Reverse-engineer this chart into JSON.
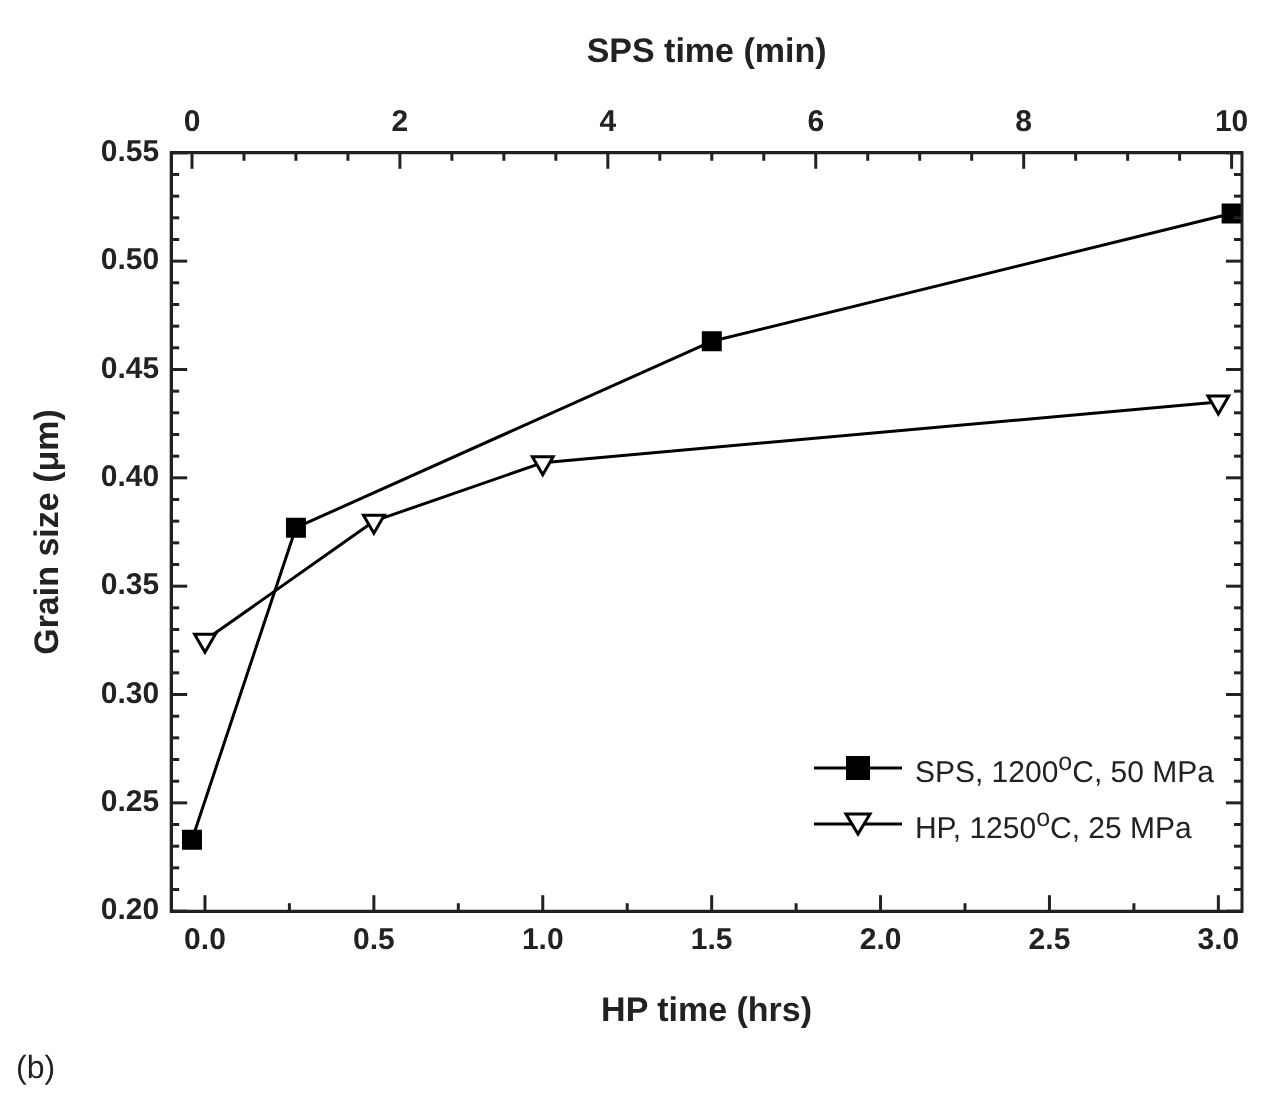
{
  "chart_data": {
    "type": "line",
    "xlabel": "HP time (hrs)",
    "x2label": "SPS time (min)",
    "ylabel": "Grain size (μm)",
    "xlim": [
      -0.1,
      3.07
    ],
    "xticks": [
      {
        "value": 0,
        "label": "0.0"
      },
      {
        "value": 0.25,
        "label": null
      },
      {
        "value": 0.5,
        "label": "0.5"
      },
      {
        "value": 0.75,
        "label": null
      },
      {
        "value": 1,
        "label": "1.0"
      },
      {
        "value": 1.25,
        "label": null
      },
      {
        "value": 1.5,
        "label": "1.5"
      },
      {
        "value": 1.75,
        "label": null
      },
      {
        "value": 2,
        "label": "2.0"
      },
      {
        "value": 2.25,
        "label": null
      },
      {
        "value": 2.5,
        "label": "2.5"
      },
      {
        "value": 2.75,
        "label": null
      },
      {
        "value": 3,
        "label": "3.0"
      }
    ],
    "x2lim": [
      -0.2,
      10.1
    ],
    "x2ticks": [
      0,
      {
        "value": 0.5,
        "label": null
      },
      {
        "value": 1,
        "label": null
      },
      {
        "value": 1.5,
        "label": null
      },
      2,
      {
        "value": 2.5,
        "label": null
      },
      {
        "value": 3,
        "label": null
      },
      {
        "value": 3.5,
        "label": null
      },
      4,
      {
        "value": 4.5,
        "label": null
      },
      {
        "value": 5,
        "label": null
      },
      {
        "value": 5.5,
        "label": null
      },
      6,
      {
        "value": 6.5,
        "label": null
      },
      {
        "value": 7,
        "label": null
      },
      {
        "value": 7.5,
        "label": null
      },
      8,
      {
        "value": 8.5,
        "label": null
      },
      {
        "value": 9,
        "label": null
      },
      {
        "value": 9.5,
        "label": null
      },
      10
    ],
    "ylim": [
      0.2,
      0.55
    ],
    "yticks": [
      {
        "value": 0.2,
        "label": "0.20"
      },
      {
        "value": 0.21,
        "label": null
      },
      {
        "value": 0.22,
        "label": null
      },
      {
        "value": 0.23,
        "label": null
      },
      {
        "value": 0.24,
        "label": null
      },
      {
        "value": 0.25,
        "label": "0.25"
      },
      {
        "value": 0.26,
        "label": null
      },
      {
        "value": 0.27,
        "label": null
      },
      {
        "value": 0.28,
        "label": null
      },
      {
        "value": 0.29,
        "label": null
      },
      {
        "value": 0.3,
        "label": "0.30"
      },
      {
        "value": 0.31,
        "label": null
      },
      {
        "value": 0.32,
        "label": null
      },
      {
        "value": 0.33,
        "label": null
      },
      {
        "value": 0.34,
        "label": null
      },
      {
        "value": 0.35,
        "label": "0.35"
      },
      {
        "value": 0.36,
        "label": null
      },
      {
        "value": 0.37,
        "label": null
      },
      {
        "value": 0.38,
        "label": null
      },
      {
        "value": 0.39,
        "label": null
      },
      {
        "value": 0.4,
        "label": "0.40"
      },
      {
        "value": 0.41,
        "label": null
      },
      {
        "value": 0.42,
        "label": null
      },
      {
        "value": 0.43,
        "label": null
      },
      {
        "value": 0.44,
        "label": null
      },
      {
        "value": 0.45,
        "label": "0.45"
      },
      {
        "value": 0.46,
        "label": null
      },
      {
        "value": 0.47,
        "label": null
      },
      {
        "value": 0.48,
        "label": null
      },
      {
        "value": 0.49,
        "label": null
      },
      {
        "value": 0.5,
        "label": "0.50"
      },
      {
        "value": 0.51,
        "label": null
      },
      {
        "value": 0.52,
        "label": null
      },
      {
        "value": 0.53,
        "label": null
      },
      {
        "value": 0.54,
        "label": null
      },
      {
        "value": 0.55,
        "label": "0.55"
      }
    ],
    "series": [
      {
        "name": "SPS, 1200$^{o}$C, 50 MPa",
        "color": "#000000",
        "axis": "x2",
        "marker": "square",
        "x": [
          0,
          1,
          5,
          10
        ],
        "values": [
          0.233,
          0.377,
          0.463,
          0.522
        ]
      },
      {
        "name": "HP, 1250$^{o}$C, 25 MPa",
        "color": "#000000",
        "marker": "triangle",
        "x": [
          0,
          0.5,
          1,
          3
        ],
        "values": [
          0.325,
          0.38,
          0.407,
          0.435
        ]
      }
    ],
    "legend": "bottom right",
    "grid": false,
    "line_style": "solid",
    "annotations": [
      "(b)"
    ]
  }
}
